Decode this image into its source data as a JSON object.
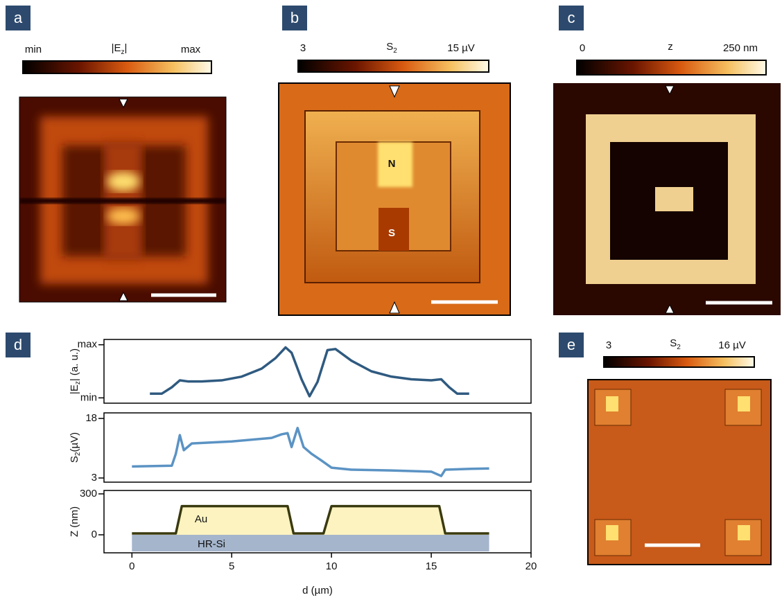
{
  "panels": [
    {
      "label": "a",
      "cbar": {
        "min": "min",
        "title": [
          "|E",
          "z",
          "|"
        ],
        "max": "max"
      }
    },
    {
      "label": "b",
      "cbar": {
        "min": "3",
        "title": [
          "S",
          "2"
        ],
        "max": "15 µV"
      },
      "annotations": [
        "N",
        "S"
      ]
    },
    {
      "label": "c",
      "cbar": {
        "min": "0",
        "title": [
          "z"
        ],
        "max": "250 nm"
      }
    },
    {
      "label": "d"
    },
    {
      "label": "e",
      "cbar": {
        "min": "3",
        "title": [
          "S",
          "2"
        ],
        "max": "16 µV"
      }
    }
  ],
  "chart_data": [
    {
      "type": "line",
      "y_label": [
        "|E",
        "z",
        "| (a. u.)"
      ],
      "x": [
        0.9,
        1.5,
        2,
        2.4,
        2.8,
        3.5,
        4.5,
        5.5,
        6.5,
        7.2,
        7.7,
        8.0,
        8.5,
        8.9,
        9.3,
        9.8,
        10.2,
        11,
        12,
        13,
        14,
        15,
        15.5,
        15.9,
        16.3,
        16.9
      ],
      "series": [
        {
          "color": "#2f5a80",
          "values": [
            0.08,
            0.08,
            0.2,
            0.33,
            0.31,
            0.31,
            0.33,
            0.4,
            0.55,
            0.75,
            0.95,
            0.85,
            0.35,
            0.03,
            0.3,
            0.9,
            0.92,
            0.7,
            0.5,
            0.4,
            0.35,
            0.33,
            0.35,
            0.2,
            0.08,
            0.08
          ]
        }
      ],
      "xlim": [
        -1.4,
        20
      ],
      "ylim": [
        -0.1,
        1.1
      ],
      "yticks": [
        {
          "value": 0,
          "label": "min"
        },
        {
          "value": 1,
          "label": "max"
        }
      ]
    },
    {
      "type": "line",
      "y_label": [
        "S",
        "2",
        "(µV)"
      ],
      "x": [
        0,
        2,
        2.2,
        2.4,
        2.6,
        3,
        5,
        7,
        7.5,
        7.8,
        8.0,
        8.3,
        8.6,
        9,
        9.5,
        10,
        11,
        13,
        15,
        15.5,
        15.7,
        17,
        17.9
      ],
      "series": [
        {
          "color": "#5b93c4",
          "values": [
            5.9,
            6.1,
            9.1,
            13.8,
            10,
            11.7,
            12.2,
            13.1,
            14,
            14.3,
            10.8,
            15.6,
            10.8,
            9.1,
            7.4,
            5.6,
            5.1,
            4.9,
            4.6,
            3.5,
            5.1,
            5.3,
            5.4
          ]
        }
      ],
      "xlim": [
        -1.4,
        20
      ],
      "ylim": [
        1.95,
        19.4
      ],
      "yticks": [
        3,
        18
      ]
    },
    {
      "type": "line",
      "y_label": [
        "Z (nm)"
      ],
      "x": [
        0,
        2.2,
        2.5,
        7.8,
        8.1,
        9.6,
        10,
        15.4,
        15.7,
        17.9
      ],
      "series": [
        {
          "color": "#3a3a10",
          "values": [
            10,
            10,
            210,
            210,
            10,
            10,
            210,
            210,
            10,
            10
          ]
        }
      ],
      "xlim": [
        -1.4,
        20
      ],
      "ylim": [
        -132,
        325
      ],
      "yticks": [
        0,
        300
      ],
      "xticks": [
        0,
        5,
        10,
        15,
        20
      ],
      "x_label": "d (µm)",
      "annotations": [
        "Au",
        "HR-Si"
      ]
    }
  ]
}
